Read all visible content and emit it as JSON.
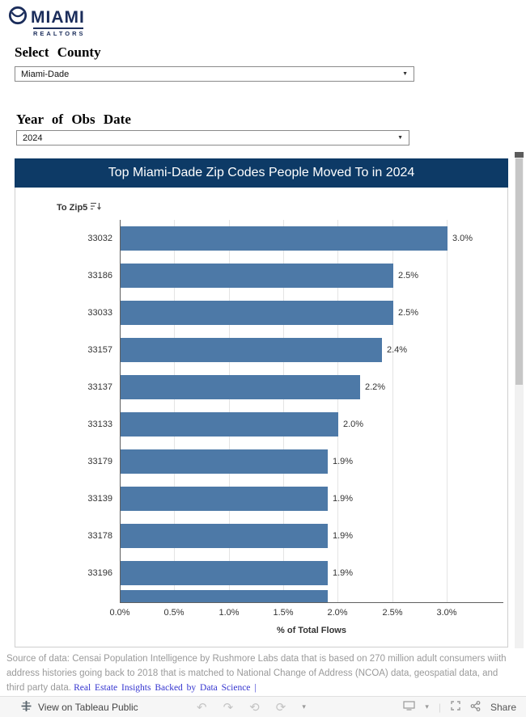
{
  "brand": {
    "name": "MIAMI",
    "subname": "REALTORS"
  },
  "filters": {
    "county_label": "Select County",
    "county_value": "Miami-Dade",
    "year_label": "Year of Obs Date",
    "year_value": "2024"
  },
  "chart": {
    "title": "Top Miami-Dade Zip Codes People Moved To in 2024",
    "column_header": "To Zip5",
    "xlabel": "% of Total Flows"
  },
  "chart_data": {
    "type": "bar",
    "orientation": "horizontal",
    "title": "Top Miami-Dade Zip Codes People Moved To in 2024",
    "xlabel": "% of Total Flows",
    "categories": [
      "33032",
      "33186",
      "33033",
      "33157",
      "33137",
      "33133",
      "33179",
      "33139",
      "33178",
      "33196"
    ],
    "values": [
      3.0,
      2.5,
      2.5,
      2.4,
      2.2,
      2.0,
      1.9,
      1.9,
      1.9,
      1.9
    ],
    "value_labels": [
      "3.0%",
      "2.5%",
      "2.5%",
      "2.4%",
      "2.2%",
      "2.0%",
      "1.9%",
      "1.9%",
      "1.9%",
      "1.9%"
    ],
    "partial_next_bar_value": 1.9,
    "x_ticks": [
      "0.0%",
      "0.5%",
      "1.0%",
      "1.5%",
      "2.0%",
      "2.5%",
      "3.0%"
    ],
    "x_tick_values": [
      0,
      0.5,
      1.0,
      1.5,
      2.0,
      2.5,
      3.0
    ],
    "xlim": [
      0,
      3.5
    ],
    "bar_color": "#4d79a7",
    "grid": true,
    "legend": "none"
  },
  "footer": {
    "source_text": "Source of data: Censai Population Intelligence by Rushmore Labs data that is based on 270 million adult consumers wiith address histories going back to 2018  that is matched to National Change of Address (NCOA) data, geospatial data, and third party data. ",
    "link_text": "Real Estate Insights Backed by Data Science |"
  },
  "bottom_bar": {
    "view_label": "View on Tableau Public",
    "share_label": "Share"
  },
  "icons": {
    "undo": "↶",
    "redo": "↷",
    "reset": "⟲",
    "refresh": "⟳",
    "caret_down": "▾",
    "dropdown_caret": "▼",
    "separator": "|"
  },
  "colors": {
    "header_bg": "#0d3a66",
    "bar": "#4d79a7",
    "link": "#3434cf",
    "brand_navy": "#1b2d5b"
  }
}
